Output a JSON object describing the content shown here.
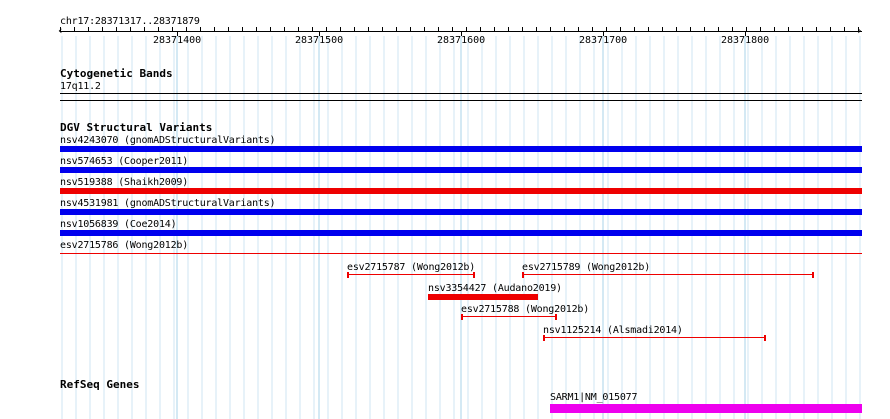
{
  "locus": "chr17:28371317..28371879",
  "ruler": {
    "ticks": [
      "28371400",
      "28371500",
      "28371600",
      "28371700",
      "28371800"
    ]
  },
  "cytogenetic": {
    "title": "Cytogenetic Bands",
    "band": "17q11.2"
  },
  "dgv": {
    "title": "DGV Structural Variants",
    "full_rows": [
      {
        "label": "nsv4243070 (gnomADStructuralVariants)",
        "color": "#0000ee"
      },
      {
        "label": "nsv574653 (Cooper2011)",
        "color": "#0000ee"
      },
      {
        "label": "nsv519388 (Shaikh2009)",
        "color": "#ee0000"
      },
      {
        "label": "nsv4531981 (gnomADStructuralVariants)",
        "color": "#0000ee"
      },
      {
        "label": "nsv1056839 (Coe2014)",
        "color": "#0000ee"
      },
      {
        "label": "esv2715786 (Wong2012b)",
        "color": "#ee0000"
      }
    ],
    "segments": [
      {
        "label": "esv2715787 (Wong2012b)",
        "color": "#ee0000",
        "style": "thin"
      },
      {
        "label": "esv2715789 (Wong2012b)",
        "color": "#ee0000",
        "style": "thin"
      },
      {
        "label": "nsv3354427 (Audano2019)",
        "color": "#ee0000",
        "style": "thick"
      },
      {
        "label": "esv2715788 (Wong2012b)",
        "color": "#ee0000",
        "style": "thin"
      },
      {
        "label": "nsv1125214 (Alsmadi2014)",
        "color": "#ee0000",
        "style": "thin"
      }
    ]
  },
  "refseq": {
    "title": "RefSeq Genes",
    "gene_label": "SARM1|NM_015077",
    "gene_color": "#ee00ee"
  }
}
